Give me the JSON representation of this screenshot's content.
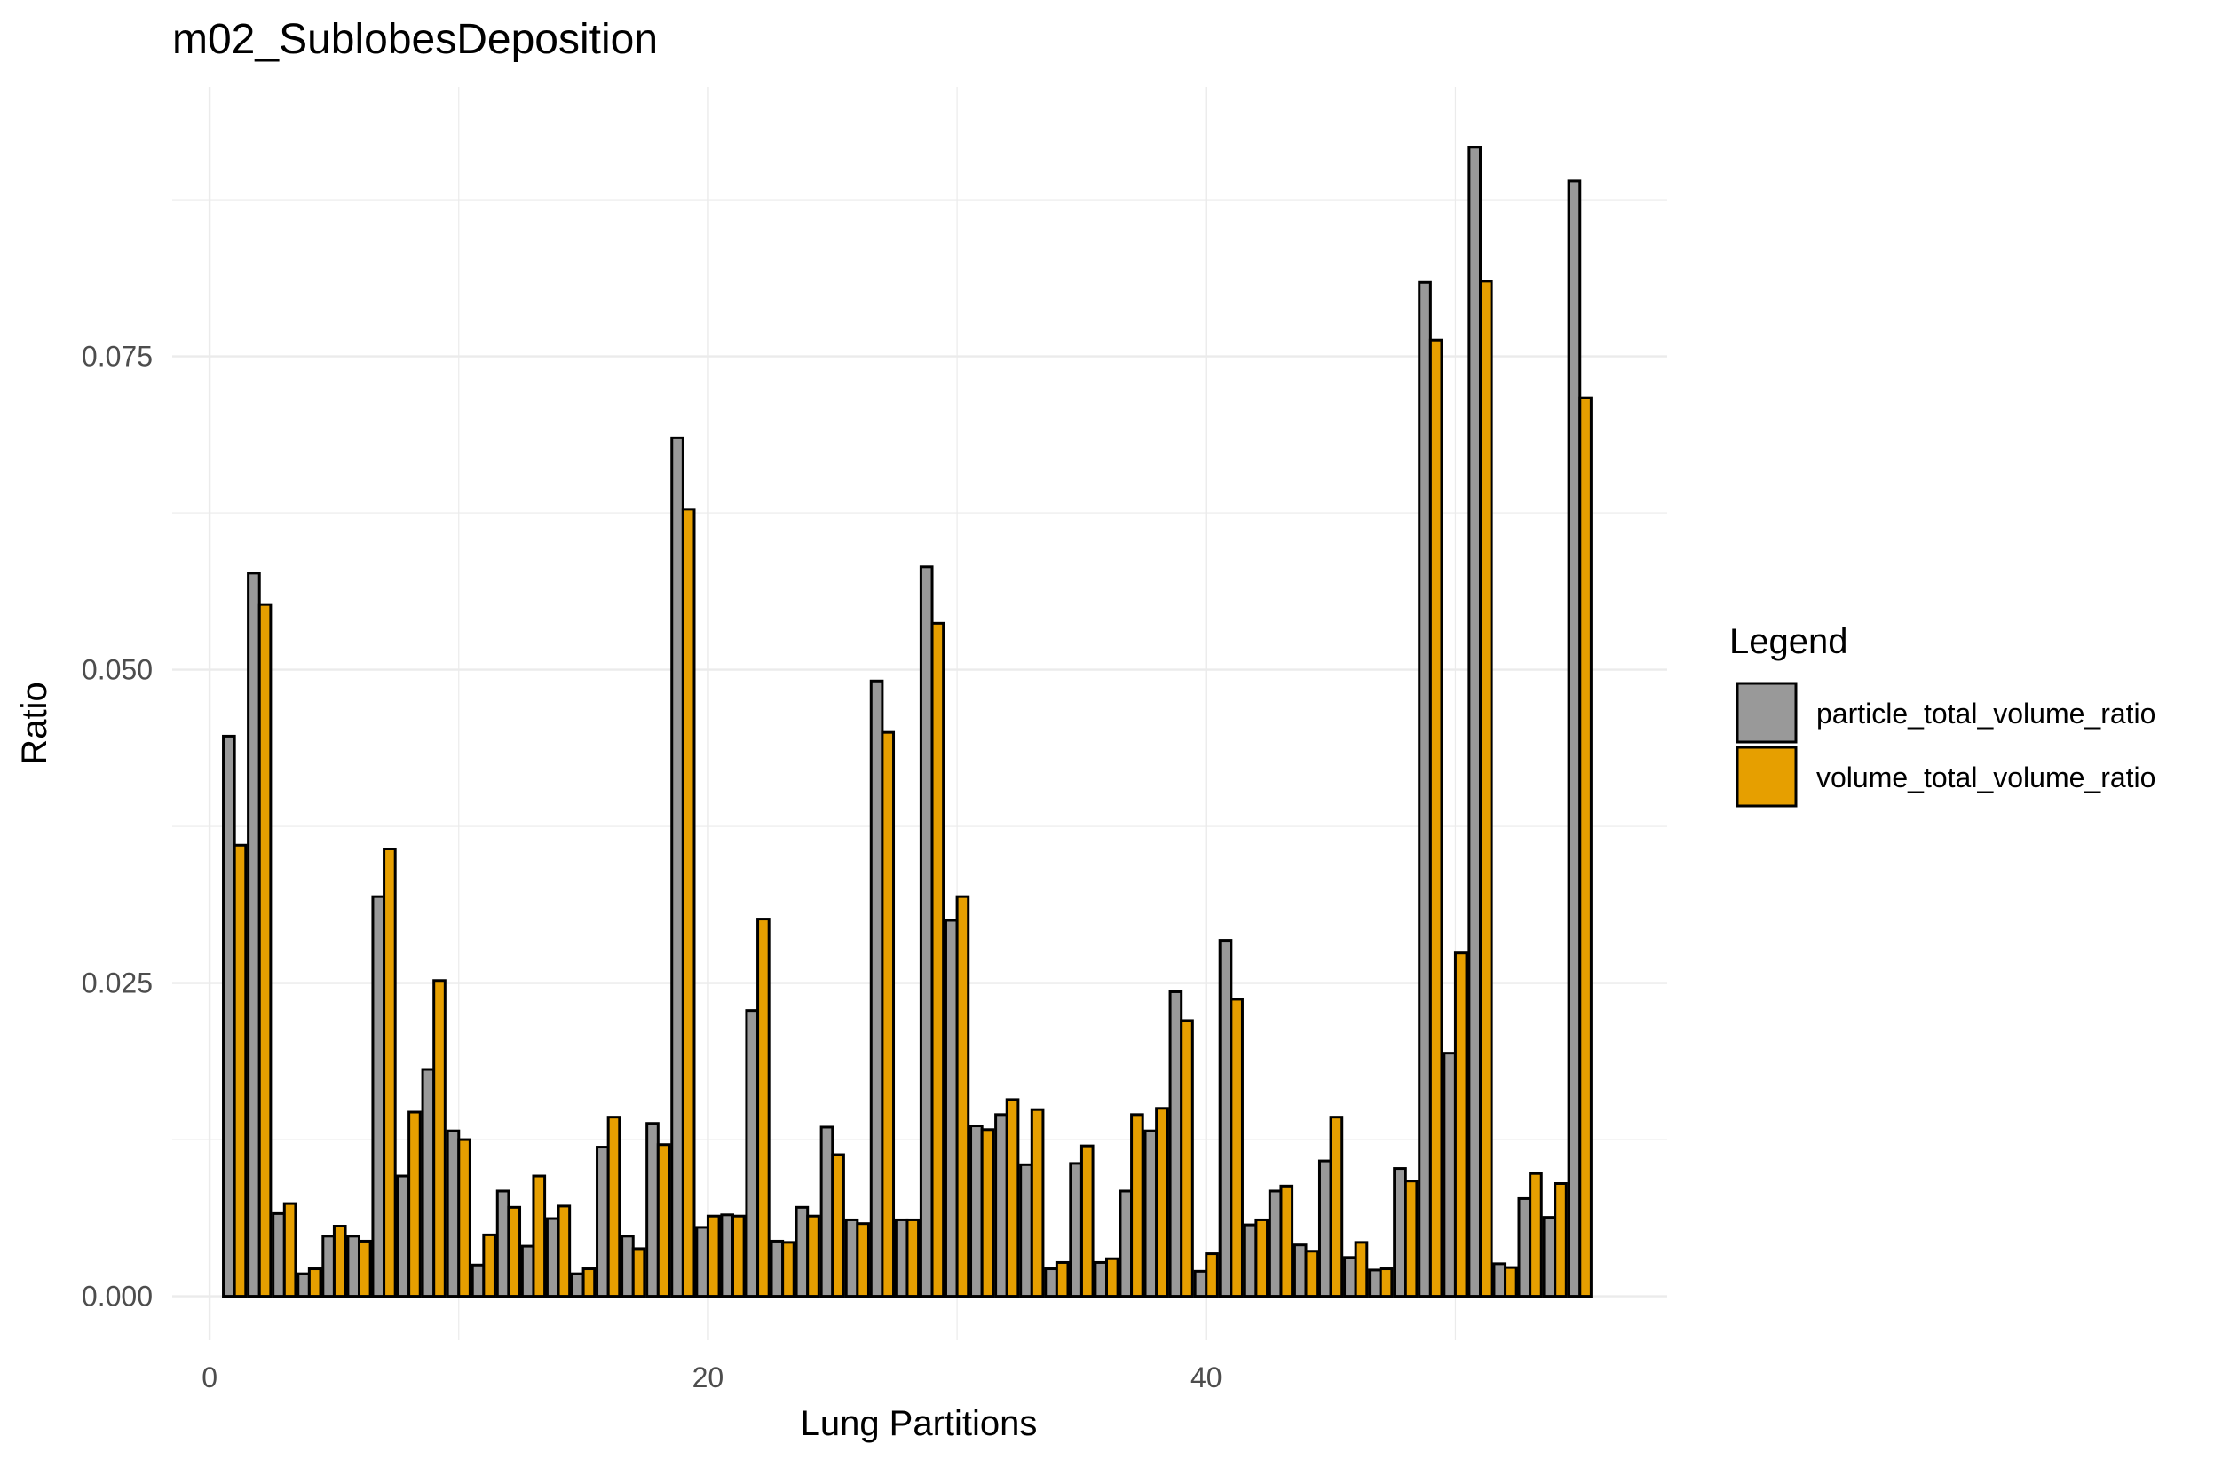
{
  "chart_data": {
    "type": "bar",
    "title": "m02_SublobesDeposition",
    "xlabel": "Lung Partitions",
    "ylabel": "Ratio",
    "xlim": [
      -1.5,
      58.5
    ],
    "ylim": [
      -0.0035,
      0.0965
    ],
    "x_ticks": [
      0,
      20,
      40
    ],
    "x_tick_labels": [
      "0",
      "20",
      "40"
    ],
    "y_ticks": [
      0,
      0.025,
      0.05,
      0.075
    ],
    "y_tick_labels": [
      "0.000",
      "0.025",
      "0.050",
      "0.075"
    ],
    "grid": true,
    "legend": {
      "title": "Legend",
      "position": "right"
    },
    "x": [
      1,
      2,
      3,
      4,
      5,
      6,
      7,
      8,
      9,
      10,
      11,
      12,
      13,
      14,
      15,
      16,
      17,
      18,
      19,
      20,
      21,
      22,
      23,
      24,
      25,
      26,
      27,
      28,
      29,
      30,
      31,
      32,
      33,
      34,
      35,
      36,
      37,
      38,
      39,
      40,
      41,
      42,
      43,
      44,
      45,
      46,
      47,
      48,
      49,
      50,
      51,
      52,
      53,
      54,
      55
    ],
    "series": [
      {
        "name": "particle_total_volume_ratio",
        "color": "#999999",
        "values": [
          0.0447,
          0.0577,
          0.0066,
          0.0018,
          0.0048,
          0.0048,
          0.0319,
          0.0096,
          0.0181,
          0.0132,
          0.0025,
          0.0084,
          0.004,
          0.0062,
          0.0018,
          0.0119,
          0.0048,
          0.0138,
          0.0685,
          0.0055,
          0.0065,
          0.0228,
          0.0044,
          0.0071,
          0.0135,
          0.0061,
          0.0491,
          0.0061,
          0.0582,
          0.03,
          0.0136,
          0.0145,
          0.0105,
          0.0022,
          0.0106,
          0.0027,
          0.0084,
          0.0132,
          0.0243,
          0.002,
          0.0284,
          0.0057,
          0.0084,
          0.0041,
          0.0108,
          0.0031,
          0.0021,
          0.0102,
          0.0809,
          0.0194,
          0.0917,
          0.0026,
          0.0078,
          0.0063,
          0.089
        ]
      },
      {
        "name": "volume_total_volume_ratio",
        "color": "#E69F00",
        "values": [
          0.036,
          0.0552,
          0.0074,
          0.0022,
          0.0056,
          0.0044,
          0.0357,
          0.0147,
          0.0252,
          0.0125,
          0.0049,
          0.0071,
          0.0096,
          0.0072,
          0.0022,
          0.0143,
          0.0038,
          0.0121,
          0.0628,
          0.0064,
          0.0064,
          0.0301,
          0.0043,
          0.0064,
          0.0113,
          0.0058,
          0.045,
          0.0061,
          0.0537,
          0.0319,
          0.0133,
          0.0157,
          0.0149,
          0.0027,
          0.012,
          0.003,
          0.0145,
          0.015,
          0.022,
          0.0034,
          0.0237,
          0.0061,
          0.0088,
          0.0036,
          0.0143,
          0.0043,
          0.0022,
          0.0092,
          0.0763,
          0.0274,
          0.081,
          0.0023,
          0.0098,
          0.009,
          0.0717
        ]
      }
    ]
  }
}
